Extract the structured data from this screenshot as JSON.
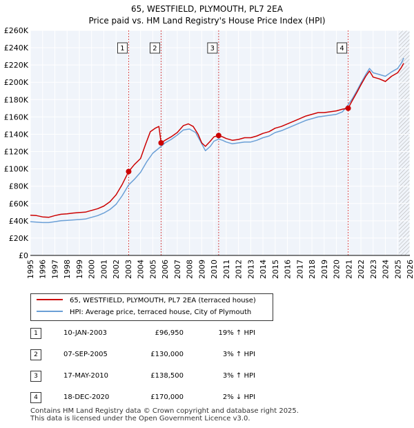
{
  "chart_data": {
    "type": "line",
    "title": "65, WESTFIELD, PLYMOUTH, PL7 2EA",
    "subtitle": "Price paid vs. HM Land Registry's House Price Index (HPI)",
    "xlabel": "",
    "ylabel": "",
    "xlim": [
      1995,
      2026
    ],
    "ylim": [
      0,
      260000
    ],
    "y_ticks": [
      {
        "value": 0,
        "label": "£0"
      },
      {
        "value": 20000,
        "label": "£20K"
      },
      {
        "value": 40000,
        "label": "£40K"
      },
      {
        "value": 60000,
        "label": "£60K"
      },
      {
        "value": 80000,
        "label": "£80K"
      },
      {
        "value": 100000,
        "label": "£100K"
      },
      {
        "value": 120000,
        "label": "£120K"
      },
      {
        "value": 140000,
        "label": "£140K"
      },
      {
        "value": 160000,
        "label": "£160K"
      },
      {
        "value": 180000,
        "label": "£180K"
      },
      {
        "value": 200000,
        "label": "£200K"
      },
      {
        "value": 220000,
        "label": "£220K"
      },
      {
        "value": 240000,
        "label": "£240K"
      },
      {
        "value": 260000,
        "label": "£260K"
      }
    ],
    "x_ticks": [
      "1995",
      "1996",
      "1997",
      "1998",
      "1999",
      "2000",
      "2001",
      "2002",
      "2003",
      "2004",
      "2005",
      "2006",
      "2007",
      "2008",
      "2009",
      "2010",
      "2011",
      "2012",
      "2013",
      "2014",
      "2015",
      "2016",
      "2017",
      "2018",
      "2019",
      "2020",
      "2021",
      "2022",
      "2023",
      "2024",
      "2025",
      "2026"
    ],
    "grid": true,
    "future_hatch_from": 2025.1,
    "series": [
      {
        "name": "65, WESTFIELD, PLYMOUTH, PL7 2EA (terraced house)",
        "color": "#cc0000",
        "points": [
          [
            1995.0,
            46500
          ],
          [
            1995.5,
            46000
          ],
          [
            1996.0,
            44500
          ],
          [
            1996.5,
            44000
          ],
          [
            1997.0,
            46000
          ],
          [
            1997.5,
            47500
          ],
          [
            1998.0,
            48000
          ],
          [
            1998.5,
            49000
          ],
          [
            1999.0,
            49500
          ],
          [
            1999.5,
            50000
          ],
          [
            2000.0,
            52000
          ],
          [
            2000.5,
            54000
          ],
          [
            2001.0,
            57000
          ],
          [
            2001.5,
            62000
          ],
          [
            2002.0,
            70000
          ],
          [
            2002.5,
            82000
          ],
          [
            2003.03,
            96950
          ],
          [
            2003.5,
            105000
          ],
          [
            2004.0,
            112000
          ],
          [
            2004.4,
            128000
          ],
          [
            2004.8,
            143000
          ],
          [
            2005.2,
            147000
          ],
          [
            2005.5,
            149000
          ],
          [
            2005.68,
            130000
          ],
          [
            2006.0,
            133000
          ],
          [
            2006.5,
            137000
          ],
          [
            2007.0,
            142000
          ],
          [
            2007.5,
            150000
          ],
          [
            2007.9,
            152000
          ],
          [
            2008.3,
            149000
          ],
          [
            2008.7,
            140000
          ],
          [
            2009.0,
            130000
          ],
          [
            2009.3,
            126000
          ],
          [
            2009.7,
            132000
          ],
          [
            2010.0,
            137000
          ],
          [
            2010.38,
            138500
          ],
          [
            2010.7,
            137000
          ],
          [
            2011.0,
            135000
          ],
          [
            2011.5,
            133000
          ],
          [
            2012.0,
            134000
          ],
          [
            2012.5,
            136000
          ],
          [
            2013.0,
            136000
          ],
          [
            2013.5,
            138000
          ],
          [
            2014.0,
            141000
          ],
          [
            2014.5,
            143000
          ],
          [
            2015.0,
            147000
          ],
          [
            2015.5,
            149000
          ],
          [
            2016.0,
            152000
          ],
          [
            2016.5,
            155000
          ],
          [
            2017.0,
            158000
          ],
          [
            2017.5,
            161000
          ],
          [
            2018.0,
            163000
          ],
          [
            2018.5,
            165000
          ],
          [
            2019.0,
            165000
          ],
          [
            2019.5,
            166000
          ],
          [
            2020.0,
            167000
          ],
          [
            2020.5,
            169000
          ],
          [
            2020.96,
            170000
          ],
          [
            2021.3,
            179000
          ],
          [
            2021.7,
            189000
          ],
          [
            2022.0,
            197000
          ],
          [
            2022.4,
            207000
          ],
          [
            2022.7,
            213000
          ],
          [
            2023.0,
            206000
          ],
          [
            2023.5,
            204000
          ],
          [
            2024.0,
            201000
          ],
          [
            2024.5,
            207000
          ],
          [
            2025.0,
            211000
          ],
          [
            2025.3,
            217000
          ],
          [
            2025.5,
            222000
          ]
        ]
      },
      {
        "name": "HPI: Average price, terraced house, City of Plymouth",
        "color": "#6a9fd6",
        "points": [
          [
            1995.0,
            39000
          ],
          [
            1995.5,
            38500
          ],
          [
            1996.0,
            38000
          ],
          [
            1996.5,
            38000
          ],
          [
            1997.0,
            39000
          ],
          [
            1997.5,
            40000
          ],
          [
            1998.0,
            40500
          ],
          [
            1998.5,
            41000
          ],
          [
            1999.0,
            41500
          ],
          [
            1999.5,
            42000
          ],
          [
            2000.0,
            44000
          ],
          [
            2000.5,
            46000
          ],
          [
            2001.0,
            49000
          ],
          [
            2001.5,
            53000
          ],
          [
            2002.0,
            59000
          ],
          [
            2002.5,
            69000
          ],
          [
            2003.03,
            81500
          ],
          [
            2003.5,
            88000
          ],
          [
            2004.0,
            96000
          ],
          [
            2004.5,
            108000
          ],
          [
            2005.0,
            118000
          ],
          [
            2005.68,
            126000
          ],
          [
            2006.0,
            130000
          ],
          [
            2006.5,
            134000
          ],
          [
            2007.0,
            139000
          ],
          [
            2007.5,
            145000
          ],
          [
            2008.0,
            146000
          ],
          [
            2008.5,
            142000
          ],
          [
            2009.0,
            129000
          ],
          [
            2009.3,
            121000
          ],
          [
            2009.7,
            126000
          ],
          [
            2010.0,
            132000
          ],
          [
            2010.38,
            134500
          ],
          [
            2010.7,
            133000
          ],
          [
            2011.0,
            131000
          ],
          [
            2011.5,
            129000
          ],
          [
            2012.0,
            130000
          ],
          [
            2012.5,
            131000
          ],
          [
            2013.0,
            131000
          ],
          [
            2013.5,
            133000
          ],
          [
            2014.0,
            136000
          ],
          [
            2014.5,
            138000
          ],
          [
            2015.0,
            142000
          ],
          [
            2015.5,
            144000
          ],
          [
            2016.0,
            147000
          ],
          [
            2016.5,
            150000
          ],
          [
            2017.0,
            153000
          ],
          [
            2017.5,
            156000
          ],
          [
            2018.0,
            158000
          ],
          [
            2018.5,
            160000
          ],
          [
            2019.0,
            161000
          ],
          [
            2019.5,
            162000
          ],
          [
            2020.0,
            163000
          ],
          [
            2020.5,
            166000
          ],
          [
            2020.96,
            174000
          ],
          [
            2021.3,
            181000
          ],
          [
            2021.7,
            191000
          ],
          [
            2022.0,
            199000
          ],
          [
            2022.4,
            209000
          ],
          [
            2022.7,
            216000
          ],
          [
            2023.0,
            211000
          ],
          [
            2023.5,
            209000
          ],
          [
            2024.0,
            207000
          ],
          [
            2024.5,
            212000
          ],
          [
            2025.0,
            216000
          ],
          [
            2025.3,
            222000
          ],
          [
            2025.5,
            228000
          ]
        ]
      }
    ],
    "sales": [
      {
        "label": "1",
        "x": 2003.03,
        "price": 96950
      },
      {
        "label": "2",
        "x": 2005.68,
        "price": 130000
      },
      {
        "label": "3",
        "x": 2010.38,
        "price": 138500
      },
      {
        "label": "4",
        "x": 2020.96,
        "price": 170000
      }
    ]
  },
  "legend": {
    "property_label": "65, WESTFIELD, PLYMOUTH, PL7 2EA (terraced house)",
    "hpi_label": "HPI: Average price, terraced house, City of Plymouth",
    "property_color": "#cc0000",
    "hpi_color": "#6a9fd6"
  },
  "transactions": [
    {
      "num": "1",
      "date": "10-JAN-2003",
      "price": "£96,950",
      "hpi": "19% ↑ HPI"
    },
    {
      "num": "2",
      "date": "07-SEP-2005",
      "price": "£130,000",
      "hpi": "3% ↑ HPI"
    },
    {
      "num": "3",
      "date": "17-MAY-2010",
      "price": "£138,500",
      "hpi": "3% ↑ HPI"
    },
    {
      "num": "4",
      "date": "18-DEC-2020",
      "price": "£170,000",
      "hpi": "2% ↓ HPI"
    }
  ],
  "footer": {
    "line1": "Contains HM Land Registry data © Crown copyright and database right 2025.",
    "line2": "This data is licensed under the Open Government Licence v3.0."
  }
}
